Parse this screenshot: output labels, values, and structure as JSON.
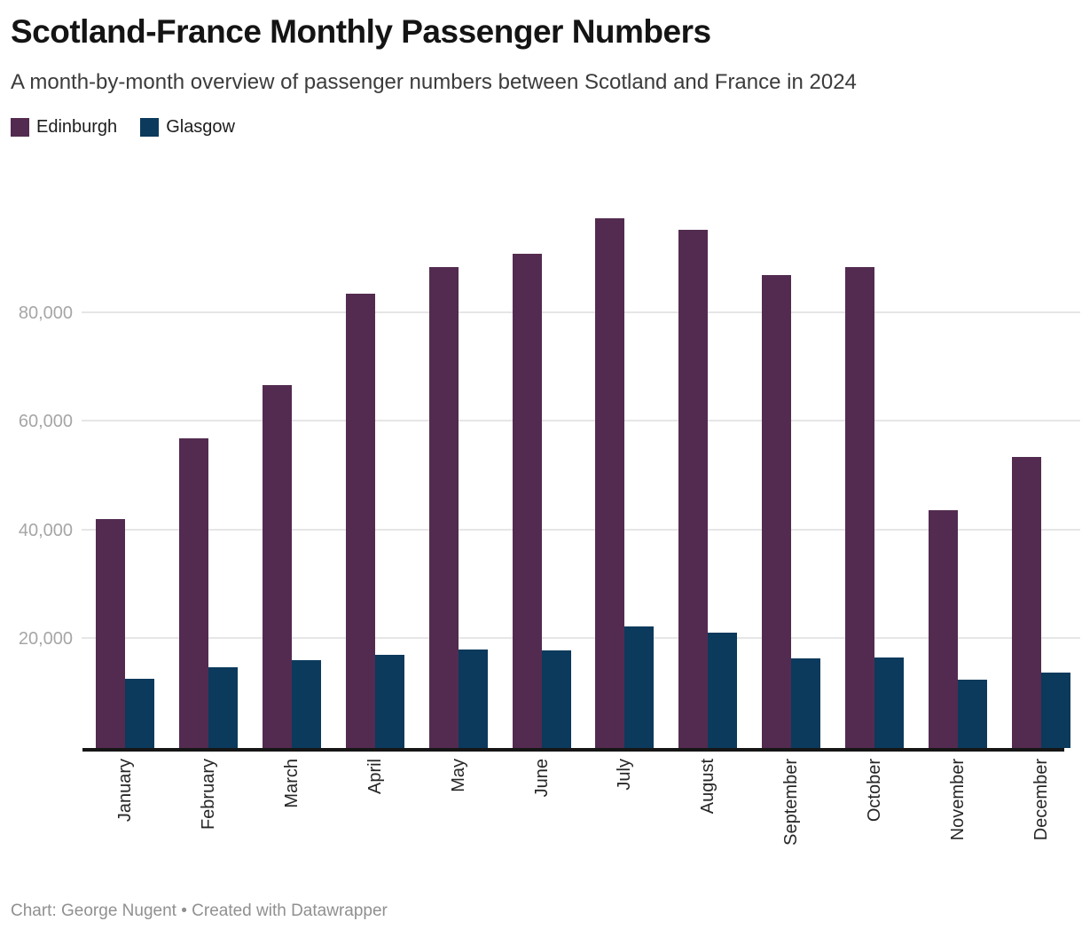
{
  "header": {
    "title": "Scotland-France Monthly Passenger Numbers",
    "subtitle": "A month-by-month overview of passenger numbers between Scotland and France in 2024"
  },
  "legend": {
    "items": [
      {
        "label": "Edinburgh",
        "color": "#532b50"
      },
      {
        "label": "Glasgow",
        "color": "#0b3a5c"
      }
    ]
  },
  "footer": {
    "text": "Chart: George Nugent • Created with Datawrapper"
  },
  "chart_data": {
    "type": "bar",
    "title": "Scotland-France Monthly Passenger Numbers",
    "subtitle": "A month-by-month overview of passenger numbers between Scotland and France in 2024",
    "categories": [
      "January",
      "February",
      "March",
      "April",
      "May",
      "June",
      "July",
      "August",
      "September",
      "October",
      "November",
      "December"
    ],
    "series": [
      {
        "name": "Edinburgh",
        "color": "#532b50",
        "values": [
          42100,
          56900,
          66700,
          83500,
          88500,
          90800,
          97400,
          95200,
          87000,
          88400,
          43800,
          53500
        ]
      },
      {
        "name": "Glasgow",
        "color": "#0b3a5c",
        "values": [
          12700,
          14800,
          16100,
          17200,
          18100,
          17900,
          22300,
          21200,
          16500,
          16700,
          12600,
          13900
        ]
      }
    ],
    "xlabel": "",
    "ylabel": "",
    "ylim": [
      0,
      100000
    ],
    "yticks": [
      20000,
      40000,
      60000,
      80000
    ],
    "ytick_labels": [
      "20,000",
      "40,000",
      "60,000",
      "80,000"
    ],
    "grid": "horizontal",
    "gridline_color": "#e6e6e6",
    "axis_line_color": "#161616",
    "legend_position": "top-left",
    "x_label_rotation": -90,
    "attribution": "Chart: George Nugent • Created with Datawrapper"
  }
}
